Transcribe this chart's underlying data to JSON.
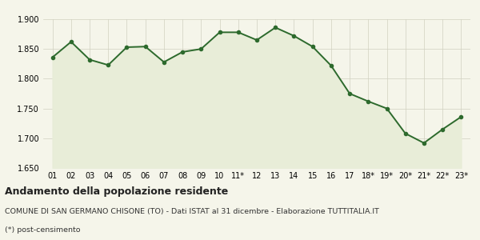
{
  "x_labels": [
    "01",
    "02",
    "03",
    "04",
    "05",
    "06",
    "07",
    "08",
    "09",
    "10",
    "11*",
    "12",
    "13",
    "14",
    "15",
    "16",
    "17",
    "18*",
    "19*",
    "20*",
    "21*",
    "22*",
    "23*"
  ],
  "y_values": [
    1836,
    1862,
    1832,
    1823,
    1853,
    1854,
    1828,
    1845,
    1850,
    1878,
    1878,
    1865,
    1886,
    1872,
    1854,
    1822,
    1775,
    1762,
    1750,
    1708,
    1692,
    1715,
    1736
  ],
  "ylim": [
    1650,
    1900
  ],
  "yticks": [
    1650,
    1700,
    1750,
    1800,
    1850,
    1900
  ],
  "line_color": "#2d6a2d",
  "fill_color": "#e8edd8",
  "marker": "o",
  "marker_size": 3,
  "line_width": 1.4,
  "bg_color": "#f5f5ea",
  "grid_color": "#d0d0c0",
  "title": "Andamento della popolazione residente",
  "subtitle": "COMUNE DI SAN GERMANO CHISONE (TO) - Dati ISTAT al 31 dicembre - Elaborazione TUTTITALIA.IT",
  "footnote": "(*) post-censimento",
  "title_fontsize": 9,
  "subtitle_fontsize": 6.8,
  "footnote_fontsize": 6.8,
  "tick_fontsize": 7
}
